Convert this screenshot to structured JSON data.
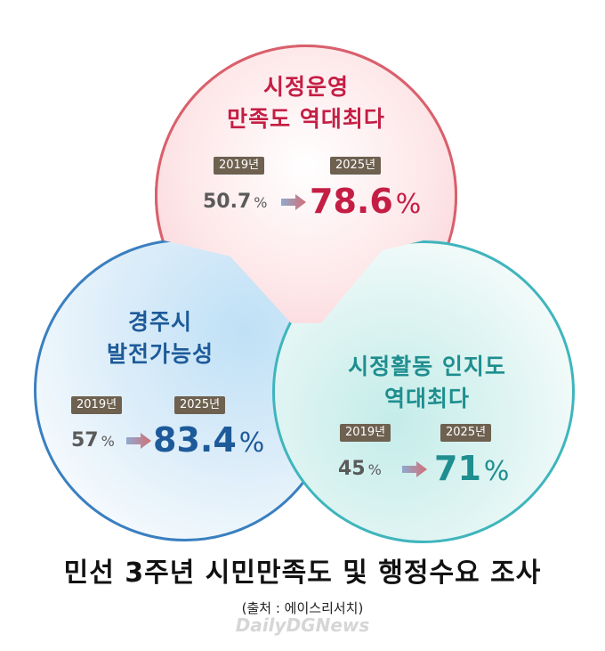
{
  "circles": [
    {
      "title_line1": "시정운영",
      "title_line2": "만족도 역대최다",
      "year_before": "2019년",
      "year_after": "2025년",
      "value_before": "50.7",
      "value_after": "78.6",
      "unit": "%",
      "color": "#c41e44"
    },
    {
      "title_line1": "경주시",
      "title_line2": "발전가능성",
      "year_before": "2019년",
      "year_after": "2025년",
      "value_before": "57",
      "value_after": "83.4",
      "unit": "%",
      "color": "#1d5a99"
    },
    {
      "title_line1": "시정활동 인지도",
      "title_line2": "역대최다",
      "year_before": "2019년",
      "year_after": "2025년",
      "value_before": "45",
      "value_after": "71",
      "unit": "%",
      "color": "#1f8e8f"
    }
  ],
  "caption": "민선 3주년 시민만족도 및 행정수요 조사",
  "source": "(출처 : 에이스리서치)",
  "watermark": "DailyDGNews"
}
